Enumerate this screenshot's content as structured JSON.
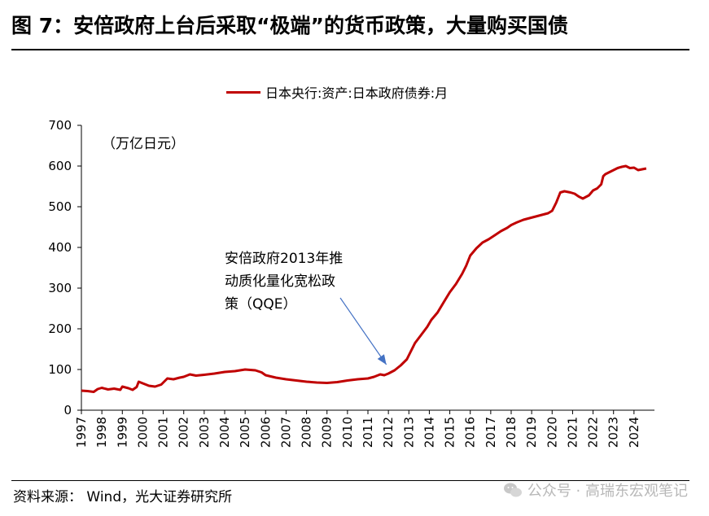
{
  "header": {
    "title": "图 7：安倍政府上台后采取“极端”的货币政策，大量购买国债"
  },
  "footer": {
    "source": "资料来源：  Wind，光大证券研究所",
    "watermark": "公众号 · 高瑞东宏观笔记"
  },
  "icons": {
    "watermark_icon": "wechat-icon"
  },
  "colors": {
    "series": "#c00000",
    "arrow": "#4472c4"
  },
  "chart_data": {
    "type": "line",
    "unit_label": "（万亿日元）",
    "annotation": "安倍政府2013年推动质化量化宽松政策（QQE）",
    "annotation_lines": [
      "安倍政府2013年推",
      "动质化量化宽松政",
      "策（QQE）"
    ],
    "annotation_arrow_target": {
      "x": 2011.9,
      "y": 88
    },
    "ylim": [
      0,
      700
    ],
    "yticks": [
      0,
      100,
      200,
      300,
      400,
      500,
      600,
      700
    ],
    "xlim": [
      1997,
      2024.6
    ],
    "xticks": [
      "1997",
      "1998",
      "1999",
      "2000",
      "2001",
      "2002",
      "2003",
      "2004",
      "2005",
      "2006",
      "2007",
      "2008",
      "2009",
      "2010",
      "2011",
      "2012",
      "2013",
      "2014",
      "2015",
      "2016",
      "2017",
      "2018",
      "2019",
      "2020",
      "2021",
      "2022",
      "2023",
      "2024"
    ],
    "series": [
      {
        "name": "日本央行:资产:日本政府债券:月",
        "color": "#c00000",
        "points": [
          [
            1997.0,
            48
          ],
          [
            1997.3,
            47
          ],
          [
            1997.6,
            45
          ],
          [
            1997.8,
            52
          ],
          [
            1998.0,
            55
          ],
          [
            1998.3,
            51
          ],
          [
            1998.6,
            53
          ],
          [
            1998.9,
            50
          ],
          [
            1999.0,
            58
          ],
          [
            1999.3,
            54
          ],
          [
            1999.5,
            50
          ],
          [
            1999.7,
            57
          ],
          [
            1999.8,
            70
          ],
          [
            2000.0,
            66
          ],
          [
            2000.3,
            60
          ],
          [
            2000.6,
            58
          ],
          [
            2000.9,
            63
          ],
          [
            2001.0,
            68
          ],
          [
            2001.2,
            78
          ],
          [
            2001.5,
            76
          ],
          [
            2001.8,
            80
          ],
          [
            2002.0,
            82
          ],
          [
            2002.3,
            88
          ],
          [
            2002.6,
            85
          ],
          [
            2003.0,
            87
          ],
          [
            2003.5,
            90
          ],
          [
            2004.0,
            94
          ],
          [
            2004.5,
            96
          ],
          [
            2005.0,
            100
          ],
          [
            2005.5,
            98
          ],
          [
            2005.8,
            93
          ],
          [
            2006.0,
            86
          ],
          [
            2006.5,
            80
          ],
          [
            2007.0,
            76
          ],
          [
            2007.5,
            73
          ],
          [
            2008.0,
            70
          ],
          [
            2008.5,
            68
          ],
          [
            2009.0,
            67
          ],
          [
            2009.5,
            69
          ],
          [
            2010.0,
            73
          ],
          [
            2010.5,
            76
          ],
          [
            2011.0,
            78
          ],
          [
            2011.3,
            82
          ],
          [
            2011.6,
            88
          ],
          [
            2011.8,
            86
          ],
          [
            2012.0,
            90
          ],
          [
            2012.3,
            98
          ],
          [
            2012.6,
            110
          ],
          [
            2012.9,
            125
          ],
          [
            2013.1,
            145
          ],
          [
            2013.3,
            165
          ],
          [
            2013.6,
            185
          ],
          [
            2013.9,
            205
          ],
          [
            2014.1,
            222
          ],
          [
            2014.4,
            240
          ],
          [
            2014.7,
            265
          ],
          [
            2015.0,
            290
          ],
          [
            2015.3,
            310
          ],
          [
            2015.6,
            335
          ],
          [
            2015.8,
            355
          ],
          [
            2016.0,
            380
          ],
          [
            2016.3,
            398
          ],
          [
            2016.6,
            412
          ],
          [
            2016.9,
            420
          ],
          [
            2017.2,
            430
          ],
          [
            2017.5,
            440
          ],
          [
            2017.8,
            448
          ],
          [
            2018.0,
            455
          ],
          [
            2018.3,
            462
          ],
          [
            2018.6,
            468
          ],
          [
            2018.9,
            472
          ],
          [
            2019.2,
            476
          ],
          [
            2019.5,
            480
          ],
          [
            2019.8,
            484
          ],
          [
            2020.0,
            490
          ],
          [
            2020.2,
            510
          ],
          [
            2020.4,
            535
          ],
          [
            2020.6,
            538
          ],
          [
            2020.9,
            535
          ],
          [
            2021.1,
            532
          ],
          [
            2021.3,
            525
          ],
          [
            2021.5,
            520
          ],
          [
            2021.8,
            528
          ],
          [
            2022.0,
            540
          ],
          [
            2022.2,
            545
          ],
          [
            2022.4,
            555
          ],
          [
            2022.5,
            575
          ],
          [
            2022.6,
            580
          ],
          [
            2022.8,
            585
          ],
          [
            2023.0,
            590
          ],
          [
            2023.2,
            595
          ],
          [
            2023.4,
            598
          ],
          [
            2023.6,
            600
          ],
          [
            2023.8,
            595
          ],
          [
            2024.0,
            596
          ],
          [
            2024.2,
            590
          ],
          [
            2024.4,
            592
          ],
          [
            2024.6,
            594
          ]
        ]
      }
    ]
  }
}
